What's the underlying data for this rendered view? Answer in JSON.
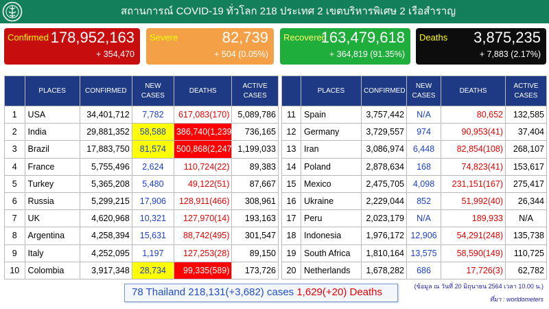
{
  "header": {
    "title": "สถานการณ์ COVID-19 ทั่วโลก 218 ประเทศ 2 เขตบริหารพิเศษ 2 เรือสำราญ",
    "logo_icon": "ministry-seal-icon",
    "bg_color": "#14805b"
  },
  "stats": {
    "confirmed": {
      "label": "Confirmed",
      "value": "178,952,163",
      "change": "+ 354,470",
      "color": "#c70d0d"
    },
    "severe": {
      "label": "Severe",
      "value": "82,739",
      "change": "+ 504 (0.05%)",
      "color": "#f4a047"
    },
    "recovered": {
      "label": "Recovered",
      "value": "163,479,618",
      "change": "+ 364,819 (91.35%)",
      "color": "#1fae3c"
    },
    "deaths": {
      "label": "Deaths",
      "value": "3,875,235",
      "change": "+ 7,883 (2.17%)",
      "color": "#0d0d0d"
    }
  },
  "table": {
    "headers": {
      "places": "PLACES",
      "confirmed": "CONFIRMED",
      "new_cases_1": "NEW",
      "new_cases_2": "CASES",
      "deaths": "DEATHS",
      "active_1": "ACTIVE",
      "active_2": "CASES"
    },
    "left": [
      {
        "rank": "1",
        "place": "USA",
        "confirmed": "34,401,712",
        "new_cases": "7,782",
        "deaths": "617,083(170)",
        "active": "5,089,786",
        "hl_new": false,
        "hl_death": false
      },
      {
        "rank": "2",
        "place": "India",
        "confirmed": "29,881,352",
        "new_cases": "58,588",
        "deaths": "386,740(1,239)",
        "active": "736,165",
        "hl_new": true,
        "hl_death": true
      },
      {
        "rank": "3",
        "place": "Brazil",
        "confirmed": "17,883,750",
        "new_cases": "81,574",
        "deaths": "500,868(2,247)",
        "active": "1,199,033",
        "hl_new": true,
        "hl_death": true
      },
      {
        "rank": "4",
        "place": "France",
        "confirmed": "5,755,496",
        "new_cases": "2,624",
        "deaths": "110,724(22)",
        "active": "89,383",
        "hl_new": false,
        "hl_death": false
      },
      {
        "rank": "5",
        "place": "Turkey",
        "confirmed": "5,365,208",
        "new_cases": "5,480",
        "deaths": "49,122(51)",
        "active": "87,667",
        "hl_new": false,
        "hl_death": false
      },
      {
        "rank": "6",
        "place": "Russia",
        "confirmed": "5,299,215",
        "new_cases": "17,906",
        "deaths": "128,911(466)",
        "active": "308,961",
        "hl_new": false,
        "hl_death": false
      },
      {
        "rank": "7",
        "place": "UK",
        "confirmed": "4,620,968",
        "new_cases": "10,321",
        "deaths": "127,970(14)",
        "active": "193,163",
        "hl_new": false,
        "hl_death": false
      },
      {
        "rank": "8",
        "place": "Argentina",
        "confirmed": "4,258,394",
        "new_cases": "15,631",
        "deaths": "88,742(495)",
        "active": "301,547",
        "hl_new": false,
        "hl_death": false
      },
      {
        "rank": "9",
        "place": "Italy",
        "confirmed": "4,252,095",
        "new_cases": "1,197",
        "deaths": "127,253(28)",
        "active": "89,150",
        "hl_new": false,
        "hl_death": false
      },
      {
        "rank": "10",
        "place": "Colombia",
        "confirmed": "3,917,348",
        "new_cases": "28,734",
        "deaths": "99,335(589)",
        "active": "173,726",
        "hl_new": true,
        "hl_death": true
      }
    ],
    "right": [
      {
        "rank": "11",
        "place": "Spain",
        "confirmed": "3,757,442",
        "new_cases": "N/A",
        "deaths": "80,652",
        "active": "132,585",
        "hl_new": false,
        "hl_death": false
      },
      {
        "rank": "12",
        "place": "Germany",
        "confirmed": "3,729,557",
        "new_cases": "974",
        "deaths": "90,953(41)",
        "active": "37,404",
        "hl_new": false,
        "hl_death": false
      },
      {
        "rank": "13",
        "place": "Iran",
        "confirmed": "3,086,974",
        "new_cases": "6,448",
        "deaths": "82,854(108)",
        "active": "268,107",
        "hl_new": false,
        "hl_death": false
      },
      {
        "rank": "14",
        "place": "Poland",
        "confirmed": "2,878,634",
        "new_cases": "168",
        "deaths": "74,823(41)",
        "active": "153,617",
        "hl_new": false,
        "hl_death": false
      },
      {
        "rank": "15",
        "place": "Mexico",
        "confirmed": "2,475,705",
        "new_cases": "4,098",
        "deaths": "231,151(167)",
        "active": "275,417",
        "hl_new": false,
        "hl_death": false
      },
      {
        "rank": "16",
        "place": "Ukraine",
        "confirmed": "2,229,044",
        "new_cases": "852",
        "deaths": "51,992(40)",
        "active": "26,344",
        "hl_new": false,
        "hl_death": false
      },
      {
        "rank": "17",
        "place": "Peru",
        "confirmed": "2,023,179",
        "new_cases": "N/A",
        "deaths": "189,933",
        "active": "N/A",
        "hl_new": false,
        "hl_death": false
      },
      {
        "rank": "18",
        "place": "Indonesia",
        "confirmed": "1,976,172",
        "new_cases": "12,906",
        "deaths": "54,291(248)",
        "active": "135,738",
        "hl_new": false,
        "hl_death": false
      },
      {
        "rank": "19",
        "place": "South Africa",
        "confirmed": "1,810,164",
        "new_cases": "13,575",
        "deaths": "58,590(149)",
        "active": "110,725",
        "hl_new": false,
        "hl_death": false
      },
      {
        "rank": "20",
        "place": "Netherlands",
        "confirmed": "1,678,282",
        "new_cases": "686",
        "deaths": "17,726(3)",
        "active": "62,782",
        "hl_new": false,
        "hl_death": false
      }
    ]
  },
  "thailand": {
    "rank_and_name": "78 Thailand",
    "cases": "218,131(+3,682) cases",
    "deaths": "1,629(+20) Deaths"
  },
  "footer": {
    "note": "(ข้อมูล ณ วันที่ 20 มิถุนายน 2564 เวลา 10.00 น.)",
    "source": "ที่มา : worldometers"
  }
}
